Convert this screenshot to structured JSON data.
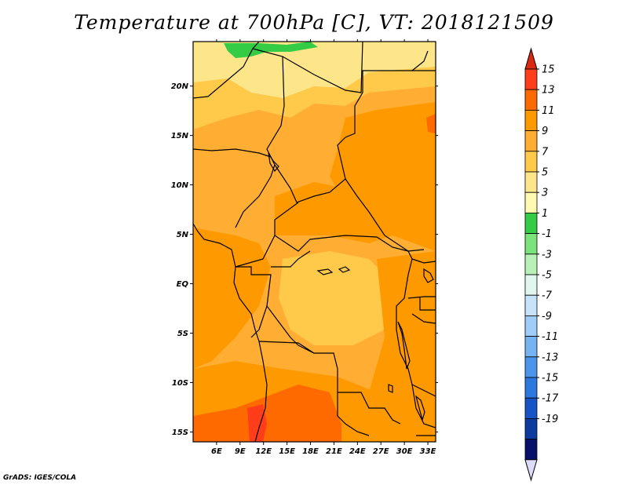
{
  "title": "Temperature at 700hPa [C], VT: 2018121509",
  "credit": "GrADS: IGES/COLA",
  "map": {
    "lon_range": [
      3,
      34
    ],
    "lat_range": [
      -16,
      24.5
    ],
    "lon_ticks": [
      6,
      9,
      12,
      15,
      18,
      21,
      24,
      27,
      30,
      33
    ],
    "lon_tick_labels": [
      "6E",
      "9E",
      "12E",
      "15E",
      "18E",
      "21E",
      "24E",
      "27E",
      "30E",
      "33E"
    ],
    "lat_ticks": [
      20,
      15,
      10,
      5,
      0,
      -5,
      -10,
      -15
    ],
    "lat_tick_labels": [
      "20N",
      "15N",
      "10N",
      "5N",
      "EQ",
      "5S",
      "10S",
      "15S"
    ]
  },
  "colorbar": {
    "labels": [
      "15",
      "13",
      "11",
      "9",
      "7",
      "5",
      "3",
      "1",
      "-1",
      "-3",
      "-5",
      "-7",
      "-9",
      "-11",
      "-13",
      "-15",
      "-17",
      "-19"
    ],
    "colors": [
      "#ff3d1a",
      "#ff6a00",
      "#ff9900",
      "#ffae33",
      "#ffc94a",
      "#fde68a",
      "#fffab0",
      "#33cc44",
      "#7be37b",
      "#b8f0b8",
      "#e0f6ee",
      "#c6e3fa",
      "#9fcdf7",
      "#75b3f2",
      "#4b96ea",
      "#2d78de",
      "#1654c5",
      "#0d3a9e",
      "#08106a"
    ],
    "top_arrow_color": "#d92912",
    "bottom_arrow_color": "#dcdcfa"
  },
  "field_colors": {
    "green": "#33cc44",
    "pale_yellow": "#fde68a",
    "light_orange": "#ffc94a",
    "orange": "#ffae33",
    "deep_orange": "#ff9900",
    "red_orange": "#ff6a00",
    "red": "#ff3d1a"
  }
}
